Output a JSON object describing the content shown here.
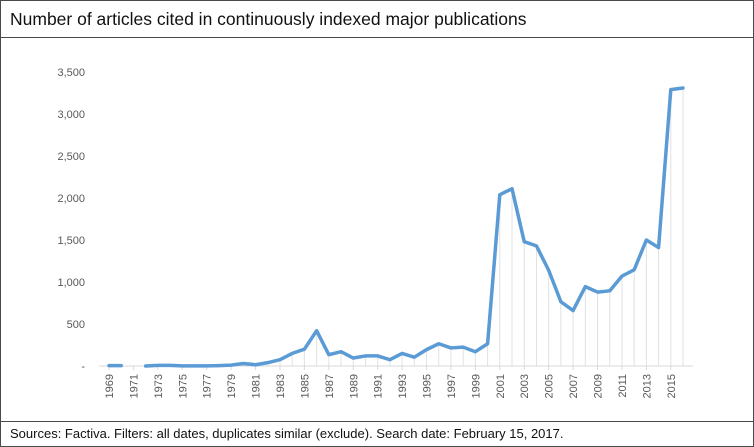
{
  "header": {
    "title": "Number of articles cited in continuously indexed major publications"
  },
  "footer": {
    "source_text": "Sources: Factiva. Filters: all dates, duplicates similar (exclude). Search date: February 15, 2017."
  },
  "chart_data": {
    "type": "line",
    "title": "Number of articles cited in continuously indexed major publications",
    "xlabel": "",
    "ylabel": "",
    "ylim": [
      0,
      3500
    ],
    "yticks": [
      0,
      500,
      1000,
      1500,
      2000,
      2500,
      3000,
      3500
    ],
    "ytick_labels": [
      "-",
      "500",
      "1,000",
      "1,500",
      "2,000",
      "2,500",
      "3,000",
      "3,500"
    ],
    "xticks": [
      1969,
      1971,
      1973,
      1975,
      1977,
      1979,
      1981,
      1983,
      1985,
      1987,
      1989,
      1991,
      1993,
      1995,
      1997,
      1999,
      2001,
      2003,
      2005,
      2007,
      2009,
      2011,
      2013,
      2015
    ],
    "grid": false,
    "line_color": "#5b9bd5",
    "drop_line_color": "#e1e1e1",
    "series": [
      {
        "x": [
          1969,
          1970,
          1971,
          1972,
          1973,
          1974,
          1975,
          1976,
          1977,
          1978,
          1979,
          1980,
          1981,
          1982,
          1983,
          1984,
          1985,
          1986,
          1987,
          1988,
          1989,
          1990,
          1991,
          1992,
          1993,
          1994,
          1995,
          1996,
          1997,
          1998,
          1999,
          2000,
          2001,
          2002,
          2003,
          2004,
          2005,
          2006,
          2007,
          2008,
          2009,
          2010,
          2011,
          2012,
          2013,
          2014,
          2015,
          2016
        ],
        "values": [
          5,
          5,
          null,
          0,
          8,
          8,
          2,
          2,
          2,
          5,
          10,
          30,
          15,
          40,
          75,
          150,
          200,
          420,
          135,
          170,
          95,
          120,
          120,
          75,
          150,
          105,
          195,
          265,
          215,
          225,
          170,
          265,
          2040,
          2110,
          1480,
          1430,
          1140,
          765,
          660,
          945,
          880,
          895,
          1070,
          1145,
          1500,
          1410,
          3290,
          3310
        ]
      }
    ]
  }
}
